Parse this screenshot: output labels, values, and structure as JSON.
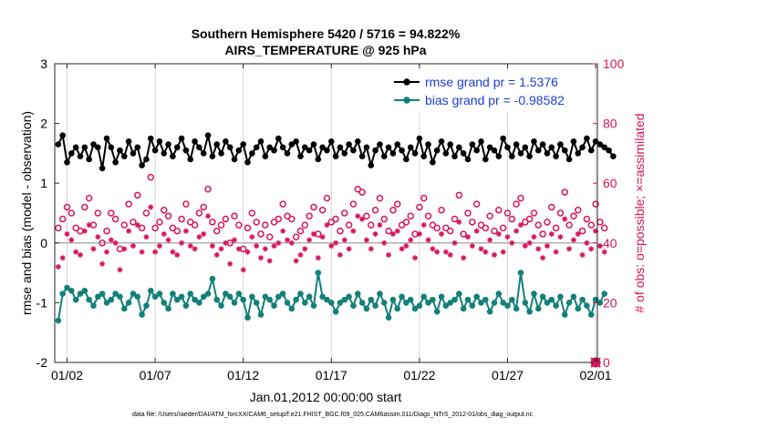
{
  "colors": {
    "rmse": "#000000",
    "bias": "#138079",
    "obs": "#d6145e",
    "legend_text": "#1c3fd6",
    "zero_line": "#b0b0b0"
  },
  "chart_data": {
    "type": "line",
    "title_line1": "Southern Hemisphere 5420 / 5716 = 94.822%",
    "title_line2": "AIRS_TEMPERATURE @ 925 hPa",
    "xlabel": "Jan.01,2012 00:00:00 start",
    "ylabel_left": "rmse and bias (model - observation)",
    "ylabel_right": "# of obs: o=possible; ×=assimilated",
    "footer": "data file: /Users/raeder/DAI/ATM_forcXX/CAM6_setup/f.e21.FHIST_BGC.f09_025.CAM6assim.011/Diags_NTrS_2012-01/obs_diag_output.nc",
    "xlim": [
      0.3,
      31.1
    ],
    "ylim_left": [
      -2,
      3
    ],
    "ylim_right": [
      0,
      100
    ],
    "x_ticks": [
      {
        "x": 1,
        "label": "01/02"
      },
      {
        "x": 6,
        "label": "01/07"
      },
      {
        "x": 11,
        "label": "01/12"
      },
      {
        "x": 16,
        "label": "01/17"
      },
      {
        "x": 21,
        "label": "01/22"
      },
      {
        "x": 26,
        "label": "01/27"
      },
      {
        "x": 31,
        "label": "02/01"
      }
    ],
    "y_ticks_left": [
      -2,
      -1,
      0,
      1,
      2,
      3
    ],
    "y_ticks_right": [
      0,
      20,
      40,
      60,
      80,
      100
    ],
    "legend": [
      {
        "name": "rmse grand pr = 1.5376",
        "series": "rmse"
      },
      {
        "name": "bias grand pr = -0.98582",
        "series": "bias"
      }
    ],
    "x_start": 0.5,
    "x_step": 0.25,
    "rmse": [
      1.65,
      1.8,
      1.35,
      1.5,
      1.6,
      1.45,
      1.6,
      1.4,
      1.65,
      1.6,
      1.25,
      1.75,
      1.6,
      1.35,
      1.55,
      1.45,
      1.7,
      1.5,
      1.6,
      1.3,
      1.4,
      1.75,
      1.55,
      1.7,
      1.5,
      1.65,
      1.45,
      1.6,
      1.75,
      1.55,
      1.4,
      1.7,
      1.6,
      1.5,
      1.8,
      1.45,
      1.65,
      1.5,
      1.7,
      1.6,
      1.4,
      1.55,
      1.65,
      1.35,
      1.5,
      1.6,
      1.7,
      1.45,
      1.6,
      1.55,
      1.75,
      1.6,
      1.5,
      1.65,
      1.7,
      1.45,
      1.6,
      1.55,
      1.65,
      1.4,
      1.6,
      1.55,
      1.7,
      1.45,
      1.6,
      1.5,
      1.65,
      1.55,
      1.7,
      1.45,
      1.6,
      1.3,
      1.55,
      1.65,
      1.45,
      1.6,
      1.5,
      1.65,
      1.55,
      1.4,
      1.6,
      1.5,
      1.75,
      1.45,
      1.65,
      1.35,
      1.55,
      1.7,
      1.5,
      1.65,
      1.45,
      1.6,
      1.5,
      1.4,
      1.65,
      1.55,
      1.7,
      1.4,
      1.6,
      1.55,
      1.45,
      1.75,
      1.6,
      1.45,
      1.65,
      1.5,
      1.6,
      1.45,
      1.7,
      1.55,
      1.65,
      1.5,
      1.6,
      1.45,
      1.65,
      1.55,
      1.4,
      1.7,
      1.5,
      1.6,
      1.75,
      1.55,
      1.7,
      1.65,
      1.6,
      1.55,
      1.45
    ],
    "bias": [
      -1.3,
      -0.85,
      -0.75,
      -0.8,
      -0.95,
      -0.85,
      -0.8,
      -0.95,
      -1.05,
      -0.9,
      -0.85,
      -1.0,
      -0.95,
      -0.85,
      -0.9,
      -1.1,
      -1.0,
      -0.85,
      -0.9,
      -1.2,
      -1.05,
      -0.8,
      -0.9,
      -0.85,
      -1.0,
      -1.1,
      -0.85,
      -0.95,
      -0.9,
      -1.05,
      -0.85,
      -0.95,
      -1.0,
      -0.9,
      -0.85,
      -0.6,
      -0.95,
      -1.05,
      -0.85,
      -0.9,
      -1.0,
      -0.85,
      -0.95,
      -1.25,
      -0.9,
      -1.0,
      -1.2,
      -0.9,
      -0.95,
      -1.05,
      -0.9,
      -0.85,
      -1.0,
      -1.1,
      -0.95,
      -0.85,
      -1.0,
      -0.9,
      -1.05,
      -0.5,
      -0.9,
      -0.95,
      -1.0,
      -1.15,
      -1.0,
      -0.95,
      -0.9,
      -1.05,
      -0.85,
      -1.0,
      -1.1,
      -0.95,
      -1.05,
      -0.85,
      -1.0,
      -1.25,
      -0.95,
      -1.1,
      -0.9,
      -1.0,
      -0.95,
      -1.1,
      -1.05,
      -0.9,
      -1.0,
      -0.95,
      -1.15,
      -0.9,
      -1.05,
      -1.0,
      -0.95,
      -0.85,
      -1.1,
      -0.95,
      -1.05,
      -0.9,
      -1.0,
      -0.95,
      -1.15,
      -1.0,
      -0.85,
      -1.0,
      -1.05,
      -0.95,
      -1.1,
      -0.5,
      -1.0,
      -1.15,
      -0.85,
      -1.1,
      -0.9,
      -1.0,
      -0.95,
      -1.05,
      -0.9,
      -1.2,
      -1.0,
      -0.9,
      -1.1,
      -0.95,
      -1.05,
      -1.2,
      -0.95,
      -1.0,
      -0.85
    ],
    "obs_possible": [
      45,
      48,
      52,
      50,
      45,
      44,
      52,
      55,
      46,
      50,
      40,
      44,
      50,
      48,
      38,
      46,
      53,
      47,
      56,
      45,
      50,
      62,
      45,
      47,
      51,
      49,
      45,
      44,
      48,
      53,
      47,
      46,
      50,
      52,
      58,
      47,
      44,
      46,
      48,
      40,
      49,
      46,
      38,
      45,
      50,
      47,
      43,
      46,
      42,
      47,
      48,
      53,
      49,
      48,
      42,
      44,
      46,
      49,
      52,
      43,
      51,
      55,
      47,
      48,
      44,
      50,
      46,
      53,
      58,
      57,
      49,
      46,
      51,
      55,
      48,
      44,
      51,
      53,
      46,
      47,
      49,
      43,
      52,
      55,
      49,
      46,
      45,
      51,
      45,
      44,
      48,
      56,
      43,
      50,
      47,
      53,
      46,
      45,
      49,
      44,
      51,
      45,
      50,
      48,
      53,
      55,
      47,
      48,
      50,
      46,
      43,
      47,
      52,
      45,
      50,
      57,
      46,
      49,
      51,
      44,
      48,
      46,
      53,
      47,
      45
    ],
    "obs_assimilated": [
      32,
      35,
      43,
      41,
      37,
      36,
      44,
      46,
      38,
      42,
      33,
      37,
      41,
      40,
      31,
      38,
      44,
      39,
      46,
      37,
      42,
      52,
      37,
      39,
      43,
      41,
      37,
      36,
      40,
      44,
      39,
      38,
      42,
      43,
      49,
      39,
      36,
      38,
      40,
      33,
      41,
      38,
      31,
      37,
      42,
      39,
      35,
      38,
      34,
      39,
      40,
      44,
      41,
      40,
      34,
      36,
      38,
      41,
      43,
      35,
      42,
      46,
      39,
      40,
      36,
      41,
      38,
      44,
      49,
      48,
      41,
      38,
      43,
      46,
      40,
      36,
      43,
      44,
      38,
      39,
      41,
      35,
      43,
      46,
      41,
      38,
      37,
      43,
      37,
      36,
      40,
      47,
      35,
      42,
      39,
      44,
      38,
      37,
      41,
      36,
      43,
      37,
      42,
      40,
      44,
      46,
      39,
      40,
      42,
      38,
      35,
      39,
      43,
      37,
      42,
      48,
      38,
      41,
      43,
      36,
      40,
      38,
      44,
      39,
      37
    ],
    "obs_markers": [
      {
        "x": 31.0,
        "y": 0,
        "symbol": "o"
      },
      {
        "x": 31.0,
        "y": 0,
        "symbol": "x"
      }
    ]
  }
}
